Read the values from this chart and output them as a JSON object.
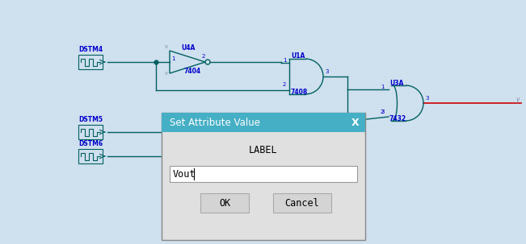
{
  "bg_color": "#cfe0ee",
  "grid_color": "#b8ccdc",
  "circuit_color": "#006060",
  "label_color": "#0000cc",
  "wire_color": "#006060",
  "dialog_title_bg": "#45afc5",
  "dialog_bg": "#e0e0e0",
  "dialog_border": "#888888",
  "dialog_title": "Set Attribute Value",
  "dialog_label": "LABEL",
  "dialog_input": "Vout",
  "ok_text": "OK",
  "cancel_text": "Cancel",
  "title_text_color": "#ffffff",
  "x_close": "X",
  "component_labels": [
    "U4A",
    "7404",
    "U1A",
    "7408",
    "U3A",
    "7432"
  ],
  "source_labels": [
    "DSTM4",
    "DSTM5",
    "DSTM6"
  ],
  "red_wire_color": "#cc0000",
  "dot_color": "#006060",
  "v_color": "#8888aa"
}
